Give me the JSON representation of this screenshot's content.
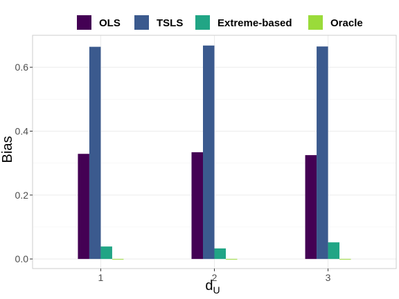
{
  "chart_data": {
    "type": "bar",
    "categories": [
      "1",
      "2",
      "3"
    ],
    "series": [
      {
        "name": "OLS",
        "color": "#440154",
        "values": [
          0.329,
          0.334,
          0.325
        ]
      },
      {
        "name": "TSLS",
        "color": "#3B5A8E",
        "values": [
          0.664,
          0.668,
          0.665
        ]
      },
      {
        "name": "Extreme-based",
        "color": "#21A585",
        "values": [
          0.039,
          0.033,
          0.052
        ]
      },
      {
        "name": "Oracle",
        "color": "#9ADB3A",
        "values": [
          -0.001,
          -0.001,
          -0.001
        ]
      }
    ],
    "xlabel": "d",
    "xlabel_subscript": "U",
    "ylabel": "Bias",
    "ylim": [
      -0.03,
      0.7
    ],
    "yticks": [
      0.0,
      0.2,
      0.4,
      0.6
    ],
    "ytick_labels": [
      "0.0",
      "0.2",
      "0.4",
      "0.6"
    ],
    "grid": true,
    "legend_position": "top"
  }
}
